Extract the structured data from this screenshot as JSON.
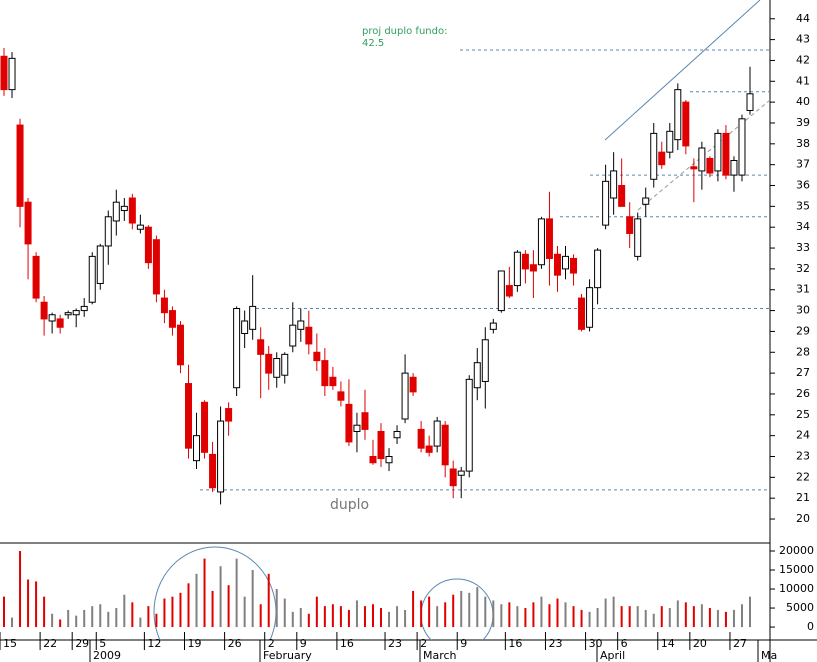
{
  "chart_data": [
    {
      "type": "candlestick",
      "categories": [
        "15",
        null,
        null,
        null,
        null,
        "22",
        null,
        null,
        null,
        "29",
        null,
        null,
        "5",
        null,
        null,
        null,
        null,
        null,
        "12",
        null,
        null,
        null,
        null,
        "19",
        null,
        null,
        null,
        null,
        "26",
        null,
        null,
        null,
        null,
        "2",
        null,
        null,
        null,
        "9",
        null,
        null,
        null,
        null,
        "16",
        null,
        null,
        null,
        null,
        null,
        "23",
        null,
        null,
        null,
        "2",
        null,
        null,
        null,
        null,
        "9",
        null,
        null,
        null,
        null,
        null,
        "16",
        null,
        null,
        null,
        null,
        "23",
        null,
        null,
        null,
        null,
        "30",
        null,
        null,
        null,
        "6",
        null,
        null,
        null,
        null,
        "14",
        null,
        null,
        null,
        "20",
        null,
        null,
        null,
        null,
        "27",
        null,
        null
      ],
      "open": [
        42.2,
        40.6,
        38.9,
        35.2,
        32.6,
        30.4,
        29.5,
        29.6,
        29.8,
        29.8,
        30.0,
        30.4,
        31.3,
        33.1,
        34.3,
        34.8,
        35.4,
        33.9,
        34.0,
        33.4,
        30.6,
        30.0,
        29.3,
        26.5,
        22.8,
        25.6,
        23.1,
        21.3,
        25.3,
        26.3,
        28.9,
        29.1,
        28.6,
        27.9,
        26.8,
        26.9,
        28.3,
        29.1,
        29.2,
        28.0,
        27.6,
        26.8,
        26.1,
        25.5,
        24.2,
        25.1,
        23.0,
        24.2,
        22.7,
        23.9,
        24.8,
        26.8,
        24.3,
        23.5,
        23.5,
        24.5,
        22.4,
        22.1,
        22.3,
        26.3,
        26.6,
        29.1,
        30.0,
        31.2,
        31.2,
        32.7,
        32.2,
        32.2,
        34.4,
        32.7,
        32.0,
        32.5,
        30.6,
        29.2,
        31.1,
        34.1,
        35.4,
        36.0,
        34.5,
        32.6,
        35.1,
        36.3,
        37.6,
        37.6,
        38.2,
        40.0,
        36.9,
        36.7,
        37.3,
        36.7,
        38.5,
        36.5,
        36.5,
        39.6
      ],
      "high": [
        42.6,
        42.4,
        39.2,
        35.4,
        32.8,
        30.7,
        29.9,
        29.8,
        30.0,
        30.1,
        30.6,
        32.8,
        33.2,
        34.8,
        35.8,
        35.4,
        35.6,
        34.6,
        34.1,
        33.6,
        31.0,
        30.2,
        29.5,
        27.4,
        25.1,
        25.7,
        23.7,
        25.4,
        25.6,
        30.2,
        30.0,
        31.7,
        29.2,
        28.3,
        28.0,
        28.0,
        30.4,
        30.1,
        30.0,
        28.9,
        28.2,
        27.3,
        26.6,
        26.7,
        25.1,
        26.2,
        23.8,
        24.6,
        23.4,
        24.5,
        27.9,
        27.0,
        24.7,
        24.0,
        24.9,
        24.7,
        22.8,
        22.5,
        26.9,
        28.2,
        29.2,
        29.6,
        31.9,
        32.1,
        32.9,
        32.9,
        32.9,
        34.5,
        35.7,
        33.1,
        33.1,
        32.7,
        30.8,
        31.5,
        33.0,
        37.0,
        37.6,
        37.3,
        35.2,
        34.7,
        35.9,
        39.0,
        38.1,
        39.0,
        40.9,
        40.1,
        37.3,
        38.1,
        37.4,
        38.7,
        38.9,
        37.4,
        39.4,
        41.7
      ],
      "low": [
        40.3,
        40.2,
        34.0,
        31.5,
        30.4,
        28.8,
        28.9,
        28.9,
        29.6,
        29.2,
        29.7,
        30.3,
        31.0,
        32.2,
        33.6,
        34.3,
        33.9,
        33.7,
        32.0,
        30.4,
        29.4,
        28.8,
        27.0,
        22.9,
        22.4,
        22.9,
        21.3,
        20.7,
        24.0,
        25.9,
        28.2,
        28.6,
        25.8,
        26.2,
        26.3,
        26.5,
        28.0,
        28.5,
        27.9,
        27.1,
        25.9,
        26.2,
        25.4,
        23.5,
        23.2,
        23.8,
        22.6,
        22.5,
        22.3,
        23.6,
        24.6,
        25.9,
        23.2,
        23.0,
        23.2,
        22.0,
        21.0,
        21.0,
        22.0,
        25.7,
        25.3,
        28.9,
        29.9,
        30.6,
        30.9,
        31.3,
        30.6,
        32.0,
        31.2,
        30.9,
        31.5,
        31.2,
        29.0,
        29.0,
        30.3,
        33.9,
        34.6,
        35.0,
        33.0,
        32.4,
        34.5,
        35.9,
        36.8,
        37.3,
        37.7,
        37.5,
        35.2,
        35.8,
        36.4,
        36.2,
        36.3,
        35.7,
        36.2,
        39.4
      ],
      "close": [
        40.6,
        42.1,
        35.0,
        33.2,
        30.6,
        29.6,
        29.8,
        29.2,
        29.9,
        30.0,
        30.2,
        32.6,
        33.1,
        34.5,
        35.2,
        35.0,
        34.2,
        34.1,
        32.3,
        30.8,
        29.9,
        29.2,
        27.4,
        23.4,
        24.0,
        23.2,
        21.5,
        24.7,
        24.7,
        30.1,
        29.5,
        30.2,
        27.9,
        27.0,
        27.7,
        27.9,
        29.3,
        29.5,
        28.4,
        27.6,
        26.4,
        26.4,
        25.7,
        23.7,
        24.5,
        24.3,
        22.7,
        22.9,
        23.0,
        24.2,
        27.0,
        26.1,
        23.4,
        23.2,
        24.7,
        22.6,
        21.6,
        22.3,
        26.7,
        27.5,
        28.6,
        29.4,
        31.9,
        30.7,
        32.8,
        32.0,
        31.9,
        34.4,
        32.5,
        31.7,
        32.6,
        31.8,
        29.1,
        31.1,
        32.9,
        36.2,
        36.7,
        35.0,
        33.7,
        34.4,
        35.4,
        38.5,
        37.0,
        38.6,
        40.6,
        37.9,
        36.8,
        37.8,
        36.6,
        38.5,
        36.5,
        37.2,
        39.2,
        40.4
      ],
      "up_color": "#ffffff",
      "down_color": "#e00000",
      "ylim": [
        18.85,
        44.9
      ],
      "yticks": [
        20,
        21,
        22,
        23,
        24,
        25,
        26,
        27,
        28,
        29,
        30,
        31,
        32,
        33,
        34,
        35,
        36,
        37,
        38,
        39,
        40,
        41,
        42,
        43,
        44
      ],
      "levels": [
        42.5,
        40.5,
        36.5,
        34.5,
        30.1,
        21.4
      ],
      "level_color": "#5b86b0",
      "month_labels": [
        "2009",
        "February",
        "March",
        "April",
        "Ma"
      ],
      "annotations": [
        "proj duplo fundo:",
        "42.5",
        "duplo"
      ]
    },
    {
      "type": "bar",
      "values": [
        8000,
        2500,
        20000,
        12500,
        12000,
        8000,
        3500,
        2000,
        4500,
        3000,
        4500,
        5500,
        6000,
        4000,
        5000,
        8500,
        6500,
        2500,
        5500,
        3500,
        7500,
        8000,
        9000,
        11500,
        14000,
        18000,
        9500,
        16000,
        11000,
        18000,
        8000,
        15000,
        6000,
        14000,
        10000,
        7500,
        4000,
        5000,
        3500,
        8000,
        5500,
        6000,
        5500,
        4500,
        7000,
        5500,
        6000,
        5000,
        4000,
        5500,
        4500,
        9500,
        7000,
        8000,
        5500,
        6500,
        8500,
        9500,
        9000,
        10500,
        8000,
        7000,
        6000,
        6500,
        5500,
        5000,
        6500,
        8000,
        6000,
        7500,
        6500,
        5500,
        4500,
        4000,
        5000,
        7500,
        8000,
        5500,
        5500,
        5500,
        4500,
        3500,
        5500,
        5000,
        7000,
        6500,
        5500,
        6000,
        5000,
        4500,
        4000,
        4500,
        6000,
        8000
      ],
      "up_color": "#808080",
      "down_color": "#e00000",
      "ylim": [
        -3400,
        22100
      ],
      "yticks": [
        0,
        5000,
        10000,
        15000,
        20000
      ]
    }
  ]
}
